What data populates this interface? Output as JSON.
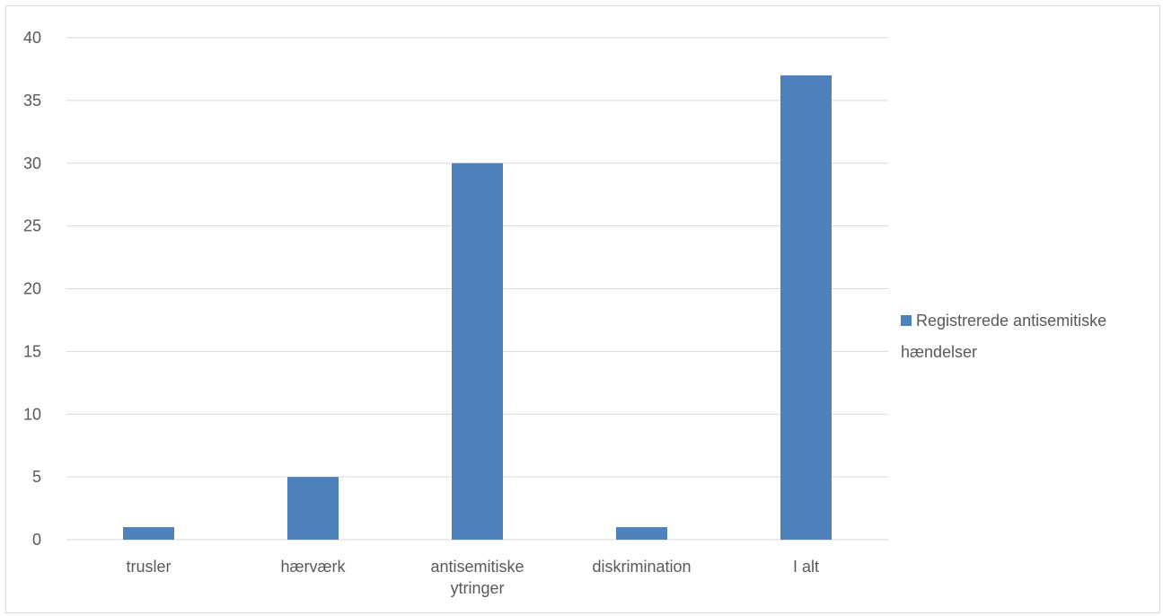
{
  "chart_data": {
    "type": "bar",
    "categories": [
      [
        "trusler"
      ],
      [
        "hærværk"
      ],
      [
        "antisemitiske",
        "ytringer"
      ],
      [
        "diskrimination"
      ],
      [
        "I alt"
      ]
    ],
    "series": [
      {
        "name": "Registrerede antisemitiske hændelser",
        "values": [
          1,
          5,
          30,
          1,
          37
        ],
        "color": "#4f81bd"
      }
    ],
    "title": "",
    "xlabel": "",
    "ylabel": "",
    "ylim": [
      0,
      40
    ],
    "y_ticks": [
      "0",
      "5",
      "10",
      "15",
      "20",
      "25",
      "30",
      "35",
      "40"
    ],
    "grid": true,
    "legend_position": "right",
    "legend_lines": [
      "Registrerede antisemitiske",
      "hændelser"
    ]
  },
  "colors": {
    "bar": "#4f81bd",
    "grid": "#d9d9d9",
    "text": "#595959"
  }
}
